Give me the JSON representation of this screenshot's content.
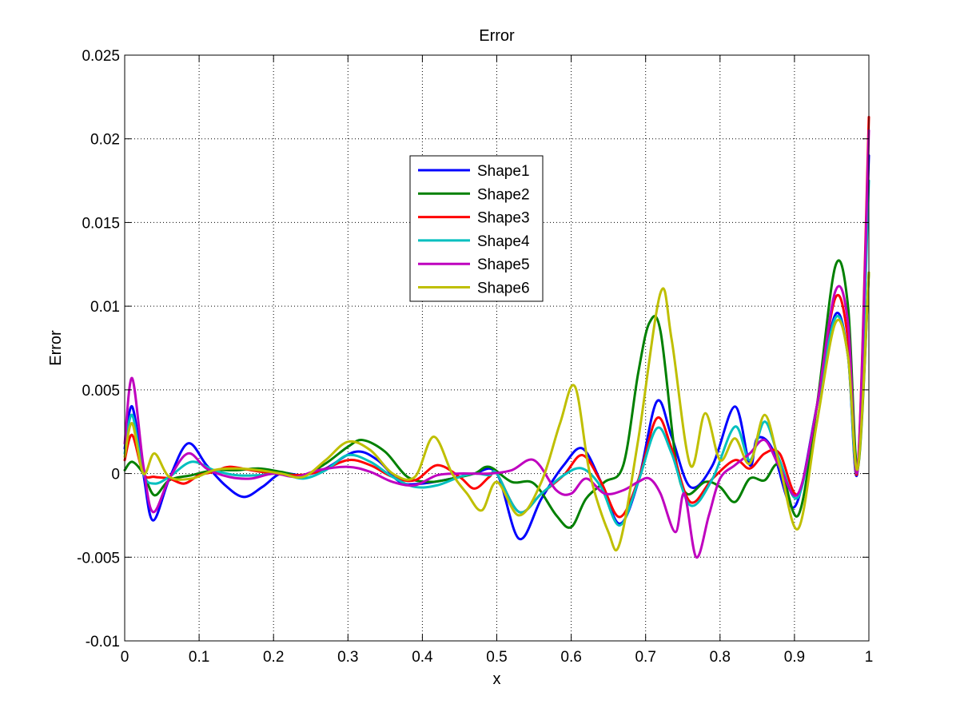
{
  "chart_data": {
    "type": "line",
    "title": "Error",
    "xlabel": "x",
    "ylabel": "Error",
    "xlim": [
      0,
      1
    ],
    "ylim": [
      -0.01,
      0.025
    ],
    "xticks": [
      "0",
      "0.1",
      "0.2",
      "0.3",
      "0.4",
      "0.5",
      "0.6",
      "0.7",
      "0.8",
      "0.9",
      "1"
    ],
    "yticks": [
      "-0.01",
      "-0.005",
      "0",
      "0.005",
      "0.01",
      "0.015",
      "0.02",
      "0.025"
    ],
    "grid": true,
    "legend_position": "upper-center",
    "series": [
      {
        "name": "Shape1",
        "color": "#0000ff",
        "x": [
          0,
          0.01,
          0.025,
          0.038,
          0.06,
          0.085,
          0.11,
          0.135,
          0.16,
          0.185,
          0.21,
          0.24,
          0.27,
          0.31,
          0.34,
          0.37,
          0.4,
          0.44,
          0.47,
          0.5,
          0.53,
          0.56,
          0.59,
          0.615,
          0.64,
          0.665,
          0.69,
          0.715,
          0.735,
          0.76,
          0.79,
          0.82,
          0.84,
          0.85,
          0.87,
          0.9,
          0.93,
          0.955,
          0.972,
          0.985,
          1.0
        ],
        "y": [
          0.0015,
          0.004,
          0.0,
          -0.0028,
          -0.0003,
          0.0018,
          0.0005,
          -0.0007,
          -0.0014,
          -0.0008,
          0.0,
          -0.0001,
          0.0003,
          0.0013,
          0.0008,
          -0.0005,
          -0.0006,
          -0.0003,
          0.0,
          0.0,
          -0.0039,
          -0.0015,
          0.0005,
          0.0015,
          -0.0005,
          -0.003,
          -0.0005,
          0.0043,
          0.0022,
          -0.0008,
          0.0005,
          0.004,
          0.0005,
          0.0021,
          0.0015,
          -0.002,
          0.004,
          0.0095,
          0.007,
          0.0002,
          0.019
        ]
      },
      {
        "name": "Shape2",
        "color": "#008000",
        "x": [
          0,
          0.01,
          0.025,
          0.04,
          0.06,
          0.09,
          0.12,
          0.15,
          0.18,
          0.21,
          0.24,
          0.27,
          0.3,
          0.32,
          0.35,
          0.38,
          0.41,
          0.44,
          0.47,
          0.49,
          0.52,
          0.55,
          0.58,
          0.6,
          0.62,
          0.645,
          0.67,
          0.69,
          0.705,
          0.72,
          0.74,
          0.755,
          0.78,
          0.8,
          0.82,
          0.84,
          0.86,
          0.88,
          0.905,
          0.93,
          0.955,
          0.972,
          0.985,
          1.0
        ],
        "y": [
          0.0002,
          0.0007,
          0.0,
          -0.0013,
          -0.0004,
          -0.0001,
          0.0002,
          0.0002,
          0.0003,
          0.0001,
          -0.0001,
          0.0006,
          0.0016,
          0.002,
          0.0013,
          -0.0002,
          -0.0005,
          -0.0003,
          0.0,
          0.0004,
          -0.0005,
          -0.0006,
          -0.0025,
          -0.0032,
          -0.0015,
          -0.0005,
          0.0005,
          0.006,
          0.009,
          0.0085,
          0.001,
          -0.0012,
          -0.0005,
          -0.0008,
          -0.0017,
          -0.0003,
          -0.0004,
          0.0005,
          -0.0025,
          0.004,
          0.0124,
          0.01,
          0.0003,
          0.012
        ]
      },
      {
        "name": "Shape3",
        "color": "#ff0000",
        "x": [
          0,
          0.01,
          0.025,
          0.04,
          0.06,
          0.08,
          0.1,
          0.12,
          0.14,
          0.17,
          0.2,
          0.23,
          0.26,
          0.3,
          0.33,
          0.36,
          0.39,
          0.42,
          0.45,
          0.47,
          0.49,
          0.5,
          0.53,
          0.56,
          0.59,
          0.615,
          0.64,
          0.665,
          0.69,
          0.715,
          0.735,
          0.76,
          0.79,
          0.82,
          0.84,
          0.86,
          0.88,
          0.905,
          0.93,
          0.955,
          0.972,
          0.985,
          1.0
        ],
        "y": [
          0.0008,
          0.0023,
          0.0,
          -0.0002,
          -0.0003,
          -0.0006,
          -0.0001,
          0.0001,
          0.0004,
          0.0002,
          0.0,
          -0.0001,
          0.0001,
          0.0008,
          0.0005,
          -0.0002,
          -0.0004,
          0.0005,
          -0.0002,
          -0.0009,
          -0.0002,
          0.0,
          -0.0023,
          -0.0012,
          -0.0001,
          0.0011,
          -0.0005,
          -0.0026,
          -0.0004,
          0.0033,
          0.0015,
          -0.0017,
          -0.0003,
          0.0008,
          0.0003,
          0.0012,
          0.0012,
          -0.0012,
          0.004,
          0.0105,
          0.008,
          0.0003,
          0.0213
        ]
      },
      {
        "name": "Shape4",
        "color": "#00bfbf",
        "x": [
          0,
          0.01,
          0.025,
          0.04,
          0.06,
          0.09,
          0.12,
          0.15,
          0.18,
          0.21,
          0.24,
          0.27,
          0.3,
          0.33,
          0.36,
          0.39,
          0.42,
          0.45,
          0.47,
          0.49,
          0.5,
          0.53,
          0.56,
          0.59,
          0.615,
          0.64,
          0.665,
          0.69,
          0.715,
          0.735,
          0.76,
          0.79,
          0.82,
          0.84,
          0.86,
          0.88,
          0.905,
          0.93,
          0.955,
          0.972,
          0.985,
          1.0
        ],
        "y": [
          0.0012,
          0.0035,
          0.0,
          -0.0006,
          -0.0002,
          0.0007,
          0.0002,
          -0.0001,
          -0.0001,
          0.0,
          -0.0003,
          0.0002,
          0.0011,
          0.0007,
          -0.0002,
          -0.0008,
          -0.0007,
          -0.0002,
          0.0,
          -0.0001,
          0.0,
          -0.0023,
          -0.0012,
          -0.0001,
          0.0003,
          -0.0008,
          -0.0031,
          -0.0005,
          0.0027,
          0.0012,
          -0.0019,
          -0.0003,
          0.0028,
          0.0008,
          0.0031,
          0.0008,
          -0.0014,
          0.004,
          0.0093,
          0.007,
          0.0003,
          0.0175
        ]
      },
      {
        "name": "Shape5",
        "color": "#bf00bf",
        "x": [
          0,
          0.01,
          0.025,
          0.038,
          0.06,
          0.085,
          0.11,
          0.14,
          0.17,
          0.2,
          0.23,
          0.26,
          0.3,
          0.33,
          0.36,
          0.39,
          0.42,
          0.45,
          0.49,
          0.52,
          0.55,
          0.58,
          0.6,
          0.62,
          0.645,
          0.67,
          0.69,
          0.705,
          0.72,
          0.74,
          0.752,
          0.768,
          0.785,
          0.8,
          0.82,
          0.84,
          0.86,
          0.88,
          0.905,
          0.93,
          0.955,
          0.972,
          0.985,
          1.0
        ],
        "y": [
          0.0018,
          0.0057,
          0.0005,
          -0.0023,
          -0.0003,
          0.0012,
          0.0003,
          -0.0002,
          -0.0003,
          0.0,
          -0.0002,
          0.0002,
          0.0004,
          0.0001,
          -0.0005,
          -0.0007,
          -0.0001,
          0.0,
          0.0,
          0.0002,
          0.0008,
          -0.001,
          -0.0012,
          -0.0003,
          -0.0012,
          -0.001,
          -0.0005,
          -0.0003,
          -0.0012,
          -0.0035,
          -0.0012,
          -0.005,
          -0.0025,
          -0.0003,
          0.0005,
          0.0012,
          0.002,
          0.0004,
          -0.0012,
          0.004,
          0.0109,
          0.009,
          0.0003,
          0.0205
        ]
      },
      {
        "name": "Shape6",
        "color": "#bfbf00",
        "x": [
          0,
          0.01,
          0.025,
          0.04,
          0.06,
          0.09,
          0.12,
          0.15,
          0.18,
          0.21,
          0.24,
          0.27,
          0.3,
          0.33,
          0.36,
          0.39,
          0.415,
          0.44,
          0.46,
          0.48,
          0.5,
          0.53,
          0.56,
          0.585,
          0.605,
          0.625,
          0.65,
          0.665,
          0.69,
          0.72,
          0.735,
          0.76,
          0.78,
          0.8,
          0.82,
          0.84,
          0.86,
          0.88,
          0.905,
          0.93,
          0.955,
          0.972,
          0.985,
          1.0
        ],
        "y": [
          0.001,
          0.003,
          0.0,
          0.0012,
          -0.0002,
          -0.0003,
          0.0002,
          0.0003,
          0.0002,
          0.0,
          -0.0002,
          0.0008,
          0.0019,
          0.0014,
          0.0,
          -0.0002,
          0.0022,
          0.0,
          -0.0012,
          -0.0022,
          -0.0005,
          -0.0025,
          -0.0005,
          0.003,
          0.0052,
          0.0,
          -0.0035,
          -0.0042,
          0.002,
          0.0108,
          0.008,
          0.0005,
          0.0036,
          0.0008,
          0.0021,
          0.0006,
          0.0035,
          0.0005,
          -0.0033,
          0.003,
          0.009,
          0.007,
          0.0003,
          0.012
        ]
      }
    ]
  }
}
